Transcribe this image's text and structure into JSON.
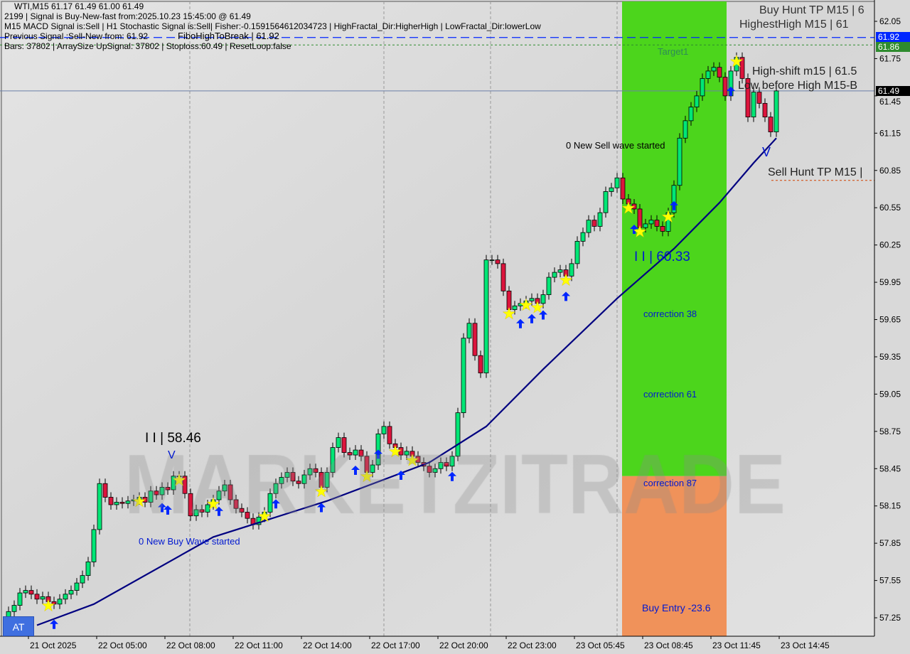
{
  "header": {
    "symbol_line": "WTI,M15  61.17 61.49 61.00 61.49",
    "signal_line": "2199 | Signal is Buy-New-fast from:2025.10.23 15:45:00 @ 61.49",
    "indicator_line": "M15 MACD Signal is:Sell | H1 Stochastic Signal is:Sell| Fisher:-0.1591564612034723 | HighFractal_Dir:HigherHigh | LowFractal_Dir:lowerLow",
    "previous_line": "Previous Signal :Sell-New from: 61.92",
    "fibo_line": "FiboHighToBreak | 61.92",
    "bars_line": "Bars: 37802 | ArraySize UpSignal: 37802 | Stoploss:60.49 | ResetLoop:false"
  },
  "annotations": {
    "sell_wave": "0 New Sell wave started",
    "low_level": "I I | 60.33",
    "high_level": "I I | 58.46",
    "high_marker": "V",
    "buy_wave": "0 New Buy Wave started",
    "target1": "Target1",
    "correction38": "correction 38",
    "correction61": "correction 61",
    "correction87": "correction 87",
    "buy_entry": "Buy Entry -23.6",
    "buy_hunt": "Buy Hunt TP M15 | 6",
    "highest_high": "HighestHigh   M15 | 61",
    "high_shift": "High-shift m15 | 61.5",
    "low_before_high": "Low before High   M15-B",
    "sell_hunt": "Sell Hunt TP M15 |",
    "sell_marker": "V",
    "watermark": "MARKETZITRADE"
  },
  "at_button": "AT",
  "price_tags": {
    "fibo_high": {
      "value": "61.92",
      "color": "#0026ff"
    },
    "target": {
      "value": "61.86",
      "color": "#2e8b2e"
    },
    "current": {
      "value": "61.49",
      "color": "#000000"
    }
  },
  "colors": {
    "bull": "#00e676",
    "bear": "#dc143c",
    "ma": "#000080",
    "zone_upper": "#4cd51c",
    "zone_lower": "#f0925a",
    "background": "#d9d9d9"
  },
  "chart_data": {
    "type": "candlestick",
    "title": "WTI,M15",
    "ylim": [
      57.1,
      62.2
    ],
    "y_ticks": [
      "62.05",
      "61.75",
      "61.45",
      "61.15",
      "60.85",
      "60.55",
      "60.25",
      "59.95",
      "59.65",
      "59.35",
      "59.05",
      "58.75",
      "58.45",
      "58.15",
      "57.85",
      "57.55",
      "57.25"
    ],
    "x_ticks": [
      {
        "bar": 3,
        "label": "21 Oct 2025"
      },
      {
        "bar": 15,
        "label": "22 Oct 05:00"
      },
      {
        "bar": 27,
        "label": "22 Oct 08:00"
      },
      {
        "bar": 39,
        "label": "22 Oct 11:00"
      },
      {
        "bar": 51,
        "label": "22 Oct 14:00"
      },
      {
        "bar": 63,
        "label": "22 Oct 17:00"
      },
      {
        "bar": 75,
        "label": "22 Oct 20:00"
      },
      {
        "bar": 87,
        "label": "22 Oct 23:00"
      },
      {
        "bar": 99,
        "label": "23 Oct 05:45"
      },
      {
        "bar": 111,
        "label": "23 Oct 08:45"
      },
      {
        "bar": 123,
        "label": "23 Oct 11:45"
      },
      {
        "bar": 135,
        "label": "23 Oct 14:45"
      }
    ],
    "first_open": 57.25,
    "closes": [
      57.3,
      57.35,
      57.45,
      57.47,
      57.44,
      57.4,
      57.42,
      57.38,
      57.36,
      57.4,
      57.44,
      57.47,
      57.53,
      57.59,
      57.7,
      57.96,
      58.33,
      58.22,
      58.16,
      58.18,
      58.17,
      58.19,
      58.2,
      58.22,
      58.18,
      58.27,
      58.24,
      58.3,
      58.28,
      58.39,
      58.39,
      58.25,
      58.07,
      58.12,
      58.1,
      58.16,
      58.2,
      58.27,
      58.32,
      58.2,
      58.13,
      58.1,
      58.05,
      58.0,
      58.06,
      58.1,
      58.25,
      58.33,
      58.38,
      58.42,
      58.35,
      58.33,
      58.4,
      58.45,
      58.42,
      58.3,
      58.42,
      58.62,
      58.7,
      58.58,
      58.56,
      58.6,
      58.55,
      58.42,
      58.48,
      58.73,
      58.79,
      58.65,
      58.62,
      58.56,
      58.59,
      58.55,
      58.5,
      58.47,
      58.42,
      58.45,
      58.5,
      58.47,
      58.55,
      58.9,
      59.5,
      59.62,
      59.36,
      59.22,
      60.13,
      60.13,
      60.1,
      59.88,
      59.73,
      59.76,
      59.78,
      59.8,
      59.82,
      59.78,
      59.85,
      59.99,
      60.03,
      60.05,
      60.0,
      60.1,
      60.28,
      60.35,
      60.45,
      60.4,
      60.51,
      60.68,
      60.71,
      60.79,
      60.62,
      60.58,
      60.54,
      60.39,
      60.42,
      60.45,
      60.4,
      60.36,
      60.51,
      60.73,
      61.11,
      61.25,
      61.36,
      61.45,
      61.59,
      61.65,
      61.68,
      61.6,
      61.45,
      61.65,
      61.76,
      61.59,
      61.28,
      61.48,
      61.39,
      61.28,
      61.16,
      61.49
    ],
    "moving_average": {
      "bars": [
        5,
        15,
        36,
        56,
        74,
        84,
        94,
        107,
        117,
        125,
        131,
        135
      ],
      "values": [
        57.19,
        57.36,
        57.9,
        58.19,
        58.5,
        58.79,
        59.25,
        59.82,
        60.22,
        60.59,
        60.91,
        61.11
      ]
    },
    "levels": {
      "fibo_high": 61.92,
      "target": 61.86,
      "current": 61.49,
      "sell_hunt": 60.77
    },
    "zones": {
      "start_bar": 108,
      "end_bar": 126,
      "upper": [
        58.39,
        62.2
      ],
      "lower": [
        57.1,
        58.39
      ]
    },
    "signals": {
      "buy_arrow_bars": [
        8,
        27,
        28,
        37,
        47,
        55,
        61,
        65,
        69,
        78,
        90,
        92,
        94,
        98,
        110,
        117,
        127
      ],
      "star_bars": [
        7,
        23,
        30,
        36,
        45,
        55,
        63,
        68,
        71,
        88,
        91,
        93,
        98,
        109,
        111,
        116,
        128
      ]
    }
  }
}
